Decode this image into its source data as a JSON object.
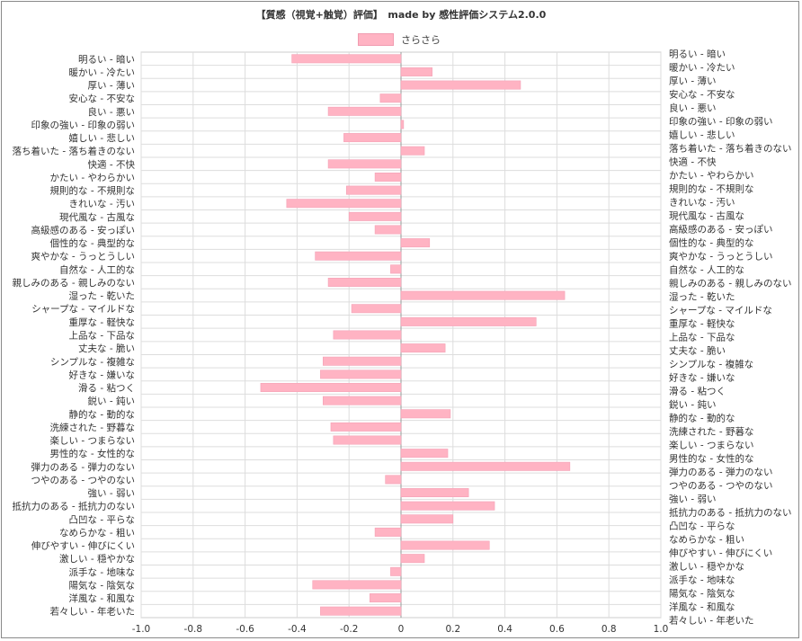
{
  "title": "【質感（視覚+触覚）評価】　made by 感性評価システム2.0.0",
  "colors": {
    "bar_fill": "#ffb3c3",
    "bar_stroke": "#f4a2b6",
    "grid": "#dddddd",
    "zero_line": "#999999"
  },
  "chart_data": {
    "type": "bar",
    "orientation": "horizontal",
    "xlim": [
      -1.0,
      1.0
    ],
    "xticks": [
      "-1.0",
      "-0.8",
      "-0.6",
      "-0.4",
      "-0.2",
      "0",
      "0.2",
      "0.4",
      "0.6",
      "0.8",
      "1.0"
    ],
    "grid": true,
    "legend_position": "top",
    "series": [
      {
        "name": "さらさら"
      }
    ],
    "categories": [
      "明るい - 暗い",
      "暖かい - 冷たい",
      "厚い - 薄い",
      "安心な - 不安な",
      "良い - 悪い",
      "印象の強い - 印象の弱い",
      "嬉しい - 悲しい",
      "落ち着いた - 落ち着きのない",
      "快適 - 不快",
      "かたい - やわらかい",
      "規則的な - 不規則な",
      "きれいな - 汚い",
      "現代風な - 古風な",
      "高級感のある - 安っぽい",
      "個性的な - 典型的な",
      "爽やかな - うっとうしい",
      "自然な - 人工的な",
      "親しみのある - 親しみのない",
      "湿った - 乾いた",
      "シャープな - マイルドな",
      "重厚な - 軽快な",
      "上品な - 下品な",
      "丈夫な - 脆い",
      "シンプルな - 複雑な",
      "好きな - 嫌いな",
      "滑る - 粘つく",
      "鋭い - 鈍い",
      "静的な - 動的な",
      "洗練された - 野暮な",
      "楽しい - つまらない",
      "男性的な - 女性的な",
      "弾力のある - 弾力のない",
      "つやのある - つやのない",
      "強い - 弱い",
      "抵抗力のある - 抵抗力のない",
      "凸凹な - 平らな",
      "なめらかな - 粗い",
      "伸びやすい - 伸びにくい",
      "激しい - 穏やかな",
      "派手な - 地味な",
      "陽気な - 陰気な",
      "洋風な - 和風な",
      "若々しい - 年老いた"
    ],
    "values": [
      -0.42,
      0.12,
      0.46,
      -0.08,
      -0.28,
      0.01,
      -0.22,
      0.09,
      -0.28,
      -0.1,
      -0.21,
      -0.44,
      -0.2,
      -0.1,
      0.11,
      -0.33,
      -0.04,
      -0.28,
      0.63,
      -0.19,
      0.52,
      -0.26,
      0.17,
      -0.3,
      -0.31,
      -0.54,
      -0.3,
      0.19,
      -0.27,
      -0.26,
      0.18,
      0.65,
      -0.06,
      0.26,
      0.36,
      0.2,
      -0.1,
      0.34,
      0.09,
      -0.04,
      -0.34,
      -0.12,
      -0.31
    ]
  }
}
